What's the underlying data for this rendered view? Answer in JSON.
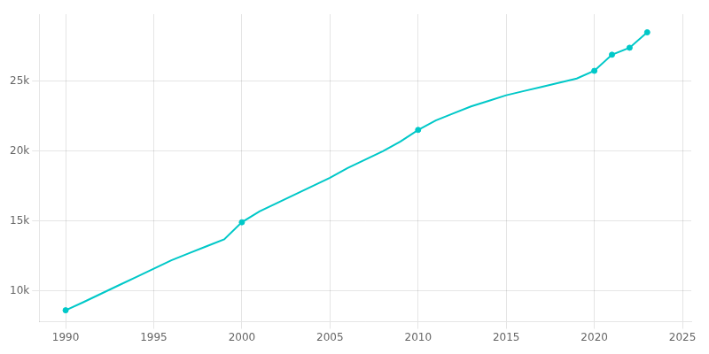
{
  "chart_data": {
    "type": "line",
    "x": [
      1990,
      1991,
      1992,
      1993,
      1994,
      1995,
      1996,
      1997,
      1998,
      1999,
      2000,
      2001,
      2002,
      2003,
      2004,
      2005,
      2006,
      2007,
      2008,
      2009,
      2010,
      2011,
      2012,
      2013,
      2014,
      2015,
      2016,
      2017,
      2018,
      2019,
      2020,
      2021,
      2022,
      2023
    ],
    "series": [
      {
        "type": "line",
        "color": "#00C8C8",
        "values": [
          8622,
          9200,
          9800,
          10400,
          11000,
          11600,
          12200,
          12700,
          13200,
          13700,
          14917,
          15700,
          16300,
          16900,
          17500,
          18100,
          18800,
          19400,
          20000,
          20700,
          21522,
          22200,
          22700,
          23200,
          23600,
          24000,
          24300,
          24600,
          24900,
          25200,
          25748,
          26900,
          27400,
          28500
        ]
      },
      {
        "type": "scatter",
        "color": "#00C8C8",
        "marker": "circle",
        "values": [
          8622,
          null,
          null,
          null,
          null,
          null,
          null,
          null,
          null,
          null,
          14917,
          null,
          null,
          null,
          null,
          null,
          null,
          null,
          null,
          null,
          21522,
          null,
          null,
          null,
          null,
          null,
          null,
          null,
          null,
          null,
          25748,
          26900,
          27400,
          28500
        ]
      }
    ],
    "xlim": [
      1988.5,
      2025.5
    ],
    "xticks": [
      1990,
      1995,
      2000,
      2005,
      2010,
      2015,
      2020,
      2025
    ],
    "ylim": [
      7800,
      29800
    ],
    "yticks": [
      {
        "value": 10000,
        "label": "10k"
      },
      {
        "value": 15000,
        "label": "15k"
      },
      {
        "value": 20000,
        "label": "20k"
      },
      {
        "value": 25000,
        "label": "25k"
      }
    ],
    "grid": true
  }
}
